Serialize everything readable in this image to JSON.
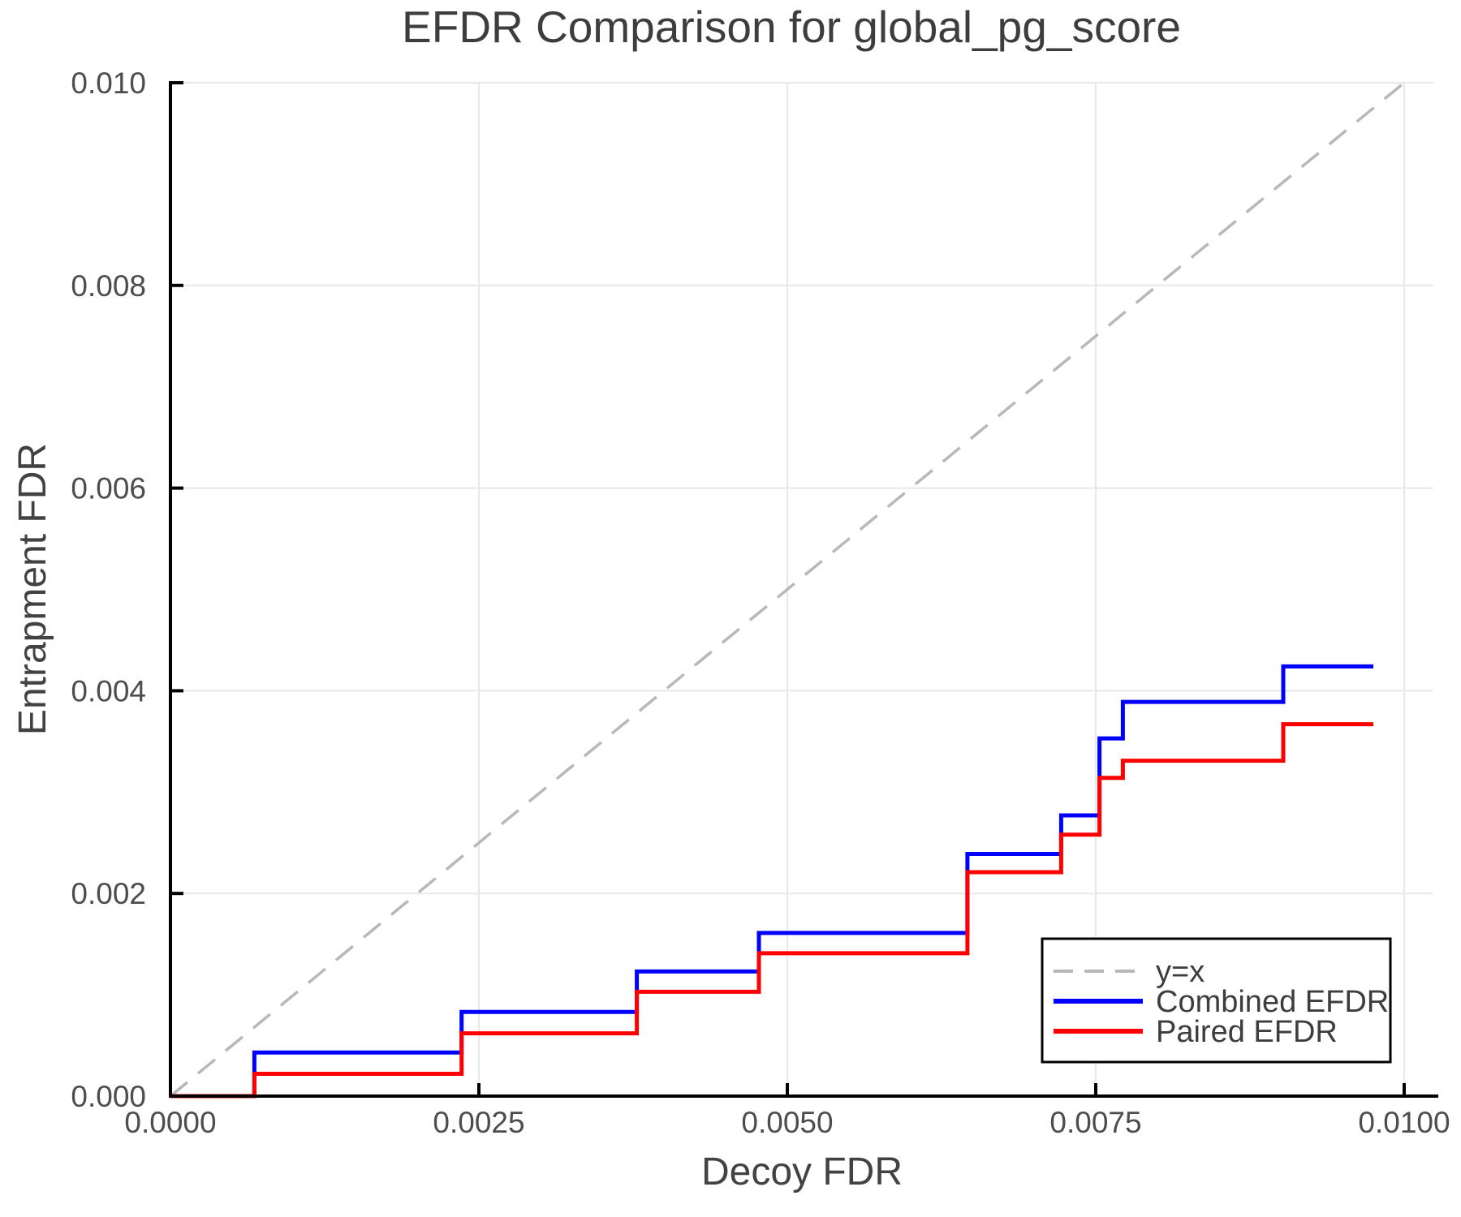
{
  "chart_data": {
    "type": "line",
    "subtype": "step-post",
    "title": "EFDR Comparison for global_pg_score",
    "xlabel": "Decoy FDR",
    "ylabel": "Entrapment FDR",
    "xlim": [
      0.0,
      0.01024
    ],
    "ylim": [
      0.0,
      0.01
    ],
    "grid": true,
    "legend_position": "lower right",
    "xticks": {
      "values": [
        0.0,
        0.0025,
        0.005,
        0.0075,
        0.01
      ],
      "labels": [
        "0.0000",
        "0.0025",
        "0.0050",
        "0.0075",
        "0.0100"
      ]
    },
    "yticks": {
      "values": [
        0.0,
        0.002,
        0.004,
        0.006,
        0.008,
        0.01
      ],
      "labels": [
        "0.000",
        "0.002",
        "0.004",
        "0.006",
        "0.008",
        "0.010"
      ]
    },
    "reference_line": {
      "label": "y=x",
      "style": "dashed",
      "color": "#b8b8b8",
      "from": [
        0.0,
        0.0
      ],
      "to": [
        0.01,
        0.01
      ]
    },
    "series": [
      {
        "name": "Combined EFDR",
        "color": "#0000ff",
        "x": [
          0.0,
          0.00068,
          0.00236,
          0.00378,
          0.00477,
          0.00646,
          0.00722,
          0.00753,
          0.00772,
          0.00902
        ],
        "y": [
          0.0,
          0.00043,
          0.00083,
          0.00123,
          0.00161,
          0.00239,
          0.00277,
          0.00353,
          0.00389,
          0.00424
        ],
        "x_end": 0.00975
      },
      {
        "name": "Paired EFDR",
        "color": "#ff0000",
        "x": [
          0.0,
          0.00068,
          0.00236,
          0.00378,
          0.00477,
          0.00646,
          0.00722,
          0.00753,
          0.00772,
          0.00902
        ],
        "y": [
          0.0,
          0.00022,
          0.00062,
          0.00103,
          0.00141,
          0.00221,
          0.00258,
          0.00314,
          0.00331,
          0.00367
        ],
        "x_end": 0.00975
      }
    ],
    "style": {
      "grid_color": "#e8e8e8",
      "spine_color": "#000000",
      "background": "#ffffff",
      "series_line_width": 5,
      "dash_line_width": 3.5
    }
  }
}
